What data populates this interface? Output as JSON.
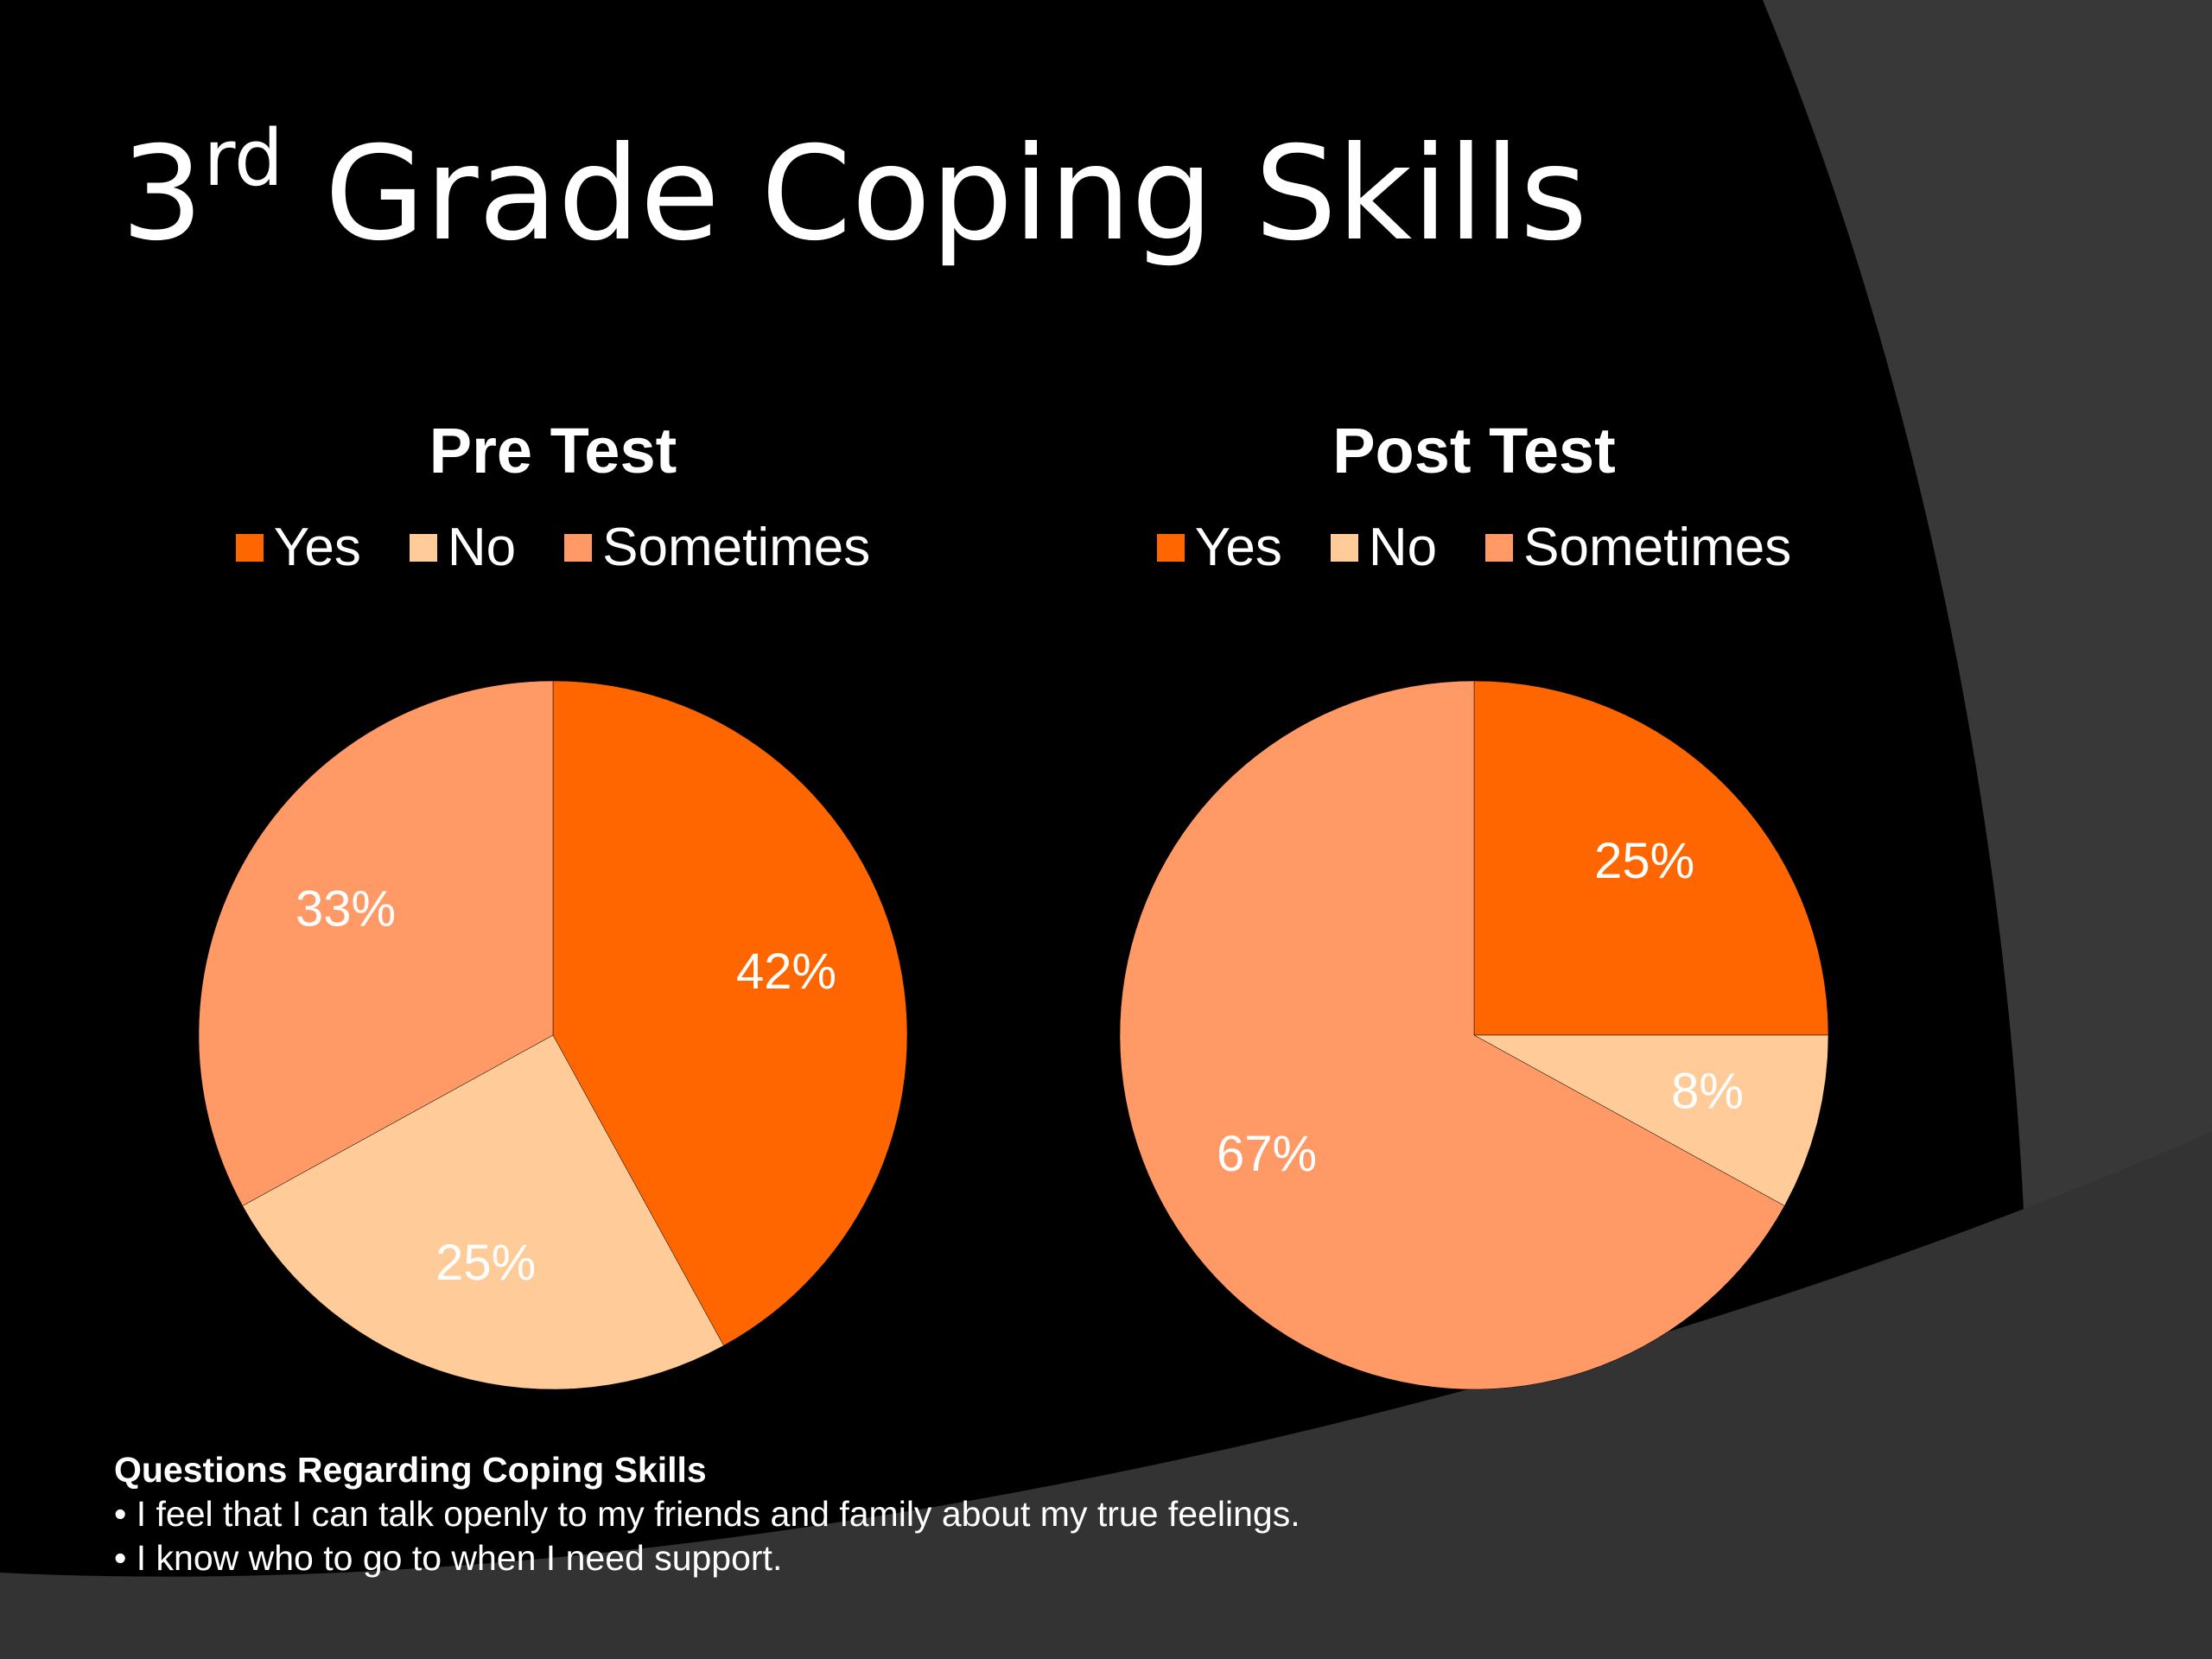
{
  "slide": {
    "title_number": "3",
    "title_superscript": "rd",
    "title_rest": " Grade Coping Skills"
  },
  "colors": {
    "background": "#000000",
    "swoosh": "#3a3a3a",
    "swoosh_edge": "#2a2a2a"
  },
  "chart_data": [
    {
      "type": "pie",
      "title": "Pre Test",
      "categories": [
        "Yes",
        "No",
        "Sometimes"
      ],
      "values": [
        42,
        25,
        33
      ],
      "labels": [
        "42%",
        "25%",
        "33%"
      ],
      "colors": [
        "#ff6600",
        "#ffcc99",
        "#ff9966"
      ],
      "legend_position": "top"
    },
    {
      "type": "pie",
      "title": "Post Test",
      "categories": [
        "Yes",
        "No",
        "Sometimes"
      ],
      "values": [
        25,
        8,
        67
      ],
      "labels": [
        "25%",
        "8%",
        "67%"
      ],
      "colors": [
        "#ff6600",
        "#ffcc99",
        "#ff9966"
      ],
      "legend_position": "top"
    }
  ],
  "notes": {
    "heading": "Questions Regarding Coping Skills",
    "lines": [
      "• I feel that I can talk openly to my friends and family about my true feelings.",
      "• I know who to go to when I need support."
    ]
  }
}
